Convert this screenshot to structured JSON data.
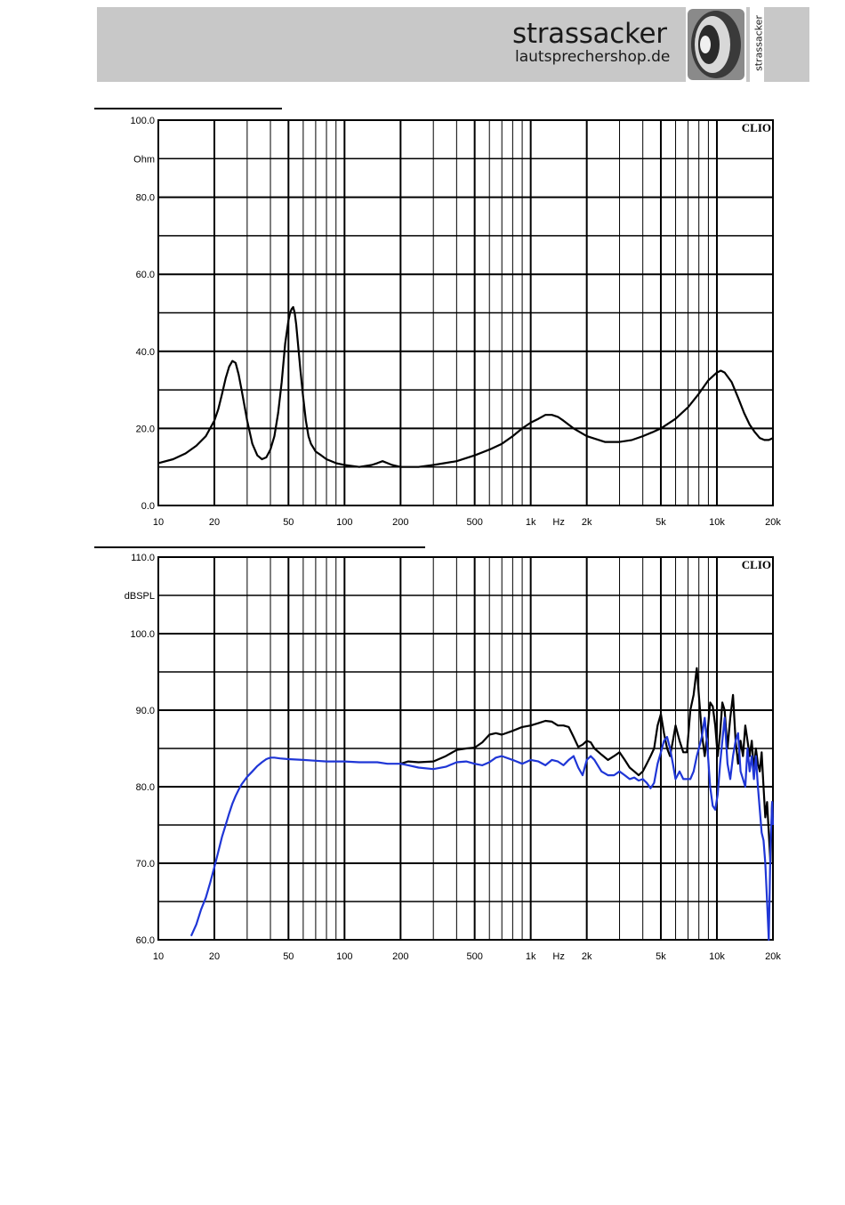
{
  "header": {
    "brand_name": "strassacker",
    "brand_url": "lautsprechershop.de",
    "logo_vertical_text": "strassacker"
  },
  "chart_data": [
    {
      "type": "line",
      "watermark": "CLIO",
      "ylabel": "Ohm",
      "xlabel": "Hz",
      "x_scale": "log",
      "xlim": [
        10,
        20000
      ],
      "ylim": [
        0,
        100
      ],
      "grid": true,
      "x_ticks": [
        10,
        20,
        50,
        100,
        200,
        500,
        1000,
        2000,
        5000,
        10000,
        20000
      ],
      "x_tick_labels": [
        "10",
        "20",
        "50",
        "100",
        "200",
        "500",
        "1k",
        "2k",
        "5k",
        "10k",
        "20k"
      ],
      "y_ticks": [
        0,
        20,
        40,
        60,
        80,
        100
      ],
      "y_tick_labels": [
        "0.0",
        "20.0",
        "40.0",
        "60.0",
        "80.0",
        "100.0"
      ],
      "series": [
        {
          "color": "#000000",
          "x": [
            10,
            12,
            14,
            16,
            18,
            20,
            21,
            22,
            23,
            24,
            25,
            26,
            27,
            28,
            30,
            32,
            34,
            36,
            38,
            40,
            42,
            44,
            46,
            48,
            50,
            51,
            52,
            53,
            54,
            55,
            56,
            57,
            58,
            60,
            62,
            64,
            66,
            68,
            70,
            75,
            80,
            90,
            100,
            120,
            140,
            150,
            160,
            170,
            180,
            200,
            250,
            300,
            400,
            500,
            600,
            700,
            800,
            900,
            1000,
            1100,
            1200,
            1300,
            1400,
            1500,
            1700,
            2000,
            2500,
            3000,
            3500,
            4000,
            4500,
            5000,
            6000,
            7000,
            8000,
            9000,
            10000,
            10500,
            11000,
            12000,
            13000,
            14000,
            15000,
            16000,
            17000,
            18000,
            19000,
            20000
          ],
          "y": [
            11,
            12,
            13.5,
            15.5,
            18,
            22,
            25,
            29,
            33,
            36,
            37.5,
            37,
            34,
            30,
            22,
            16,
            13,
            12,
            12.5,
            14.5,
            18,
            24,
            32,
            42,
            48,
            50,
            51,
            51.5,
            50,
            47,
            43,
            39,
            35,
            28,
            22,
            18,
            16,
            15,
            14,
            13,
            12,
            11,
            10.5,
            10,
            10.5,
            11,
            11.5,
            11,
            10.5,
            10,
            10,
            10.5,
            11.5,
            13,
            14.5,
            16,
            18,
            20,
            21.5,
            22.5,
            23.5,
            23.5,
            23,
            22,
            20,
            18,
            16.5,
            16.5,
            17,
            18,
            19,
            20,
            22.5,
            25.5,
            29,
            32.5,
            34.5,
            35,
            34.5,
            32,
            28,
            24,
            21,
            19,
            17.5,
            17,
            17,
            17.5
          ]
        }
      ]
    },
    {
      "type": "line",
      "watermark": "CLIO",
      "ylabel": "dBSPL",
      "xlabel": "Hz",
      "x_scale": "log",
      "xlim": [
        10,
        20000
      ],
      "ylim": [
        60,
        110
      ],
      "grid": true,
      "x_ticks": [
        10,
        20,
        50,
        100,
        200,
        500,
        1000,
        2000,
        5000,
        10000,
        20000
      ],
      "x_tick_labels": [
        "10",
        "20",
        "50",
        "100",
        "200",
        "500",
        "1k",
        "2k",
        "5k",
        "10k",
        "20k"
      ],
      "y_ticks": [
        60,
        70,
        80,
        90,
        100,
        110
      ],
      "y_tick_labels": [
        "60.0",
        "70.0",
        "80.0",
        "90.0",
        "100.0",
        "110.0"
      ],
      "series": [
        {
          "color": "#000000",
          "x": [
            200,
            220,
            250,
            300,
            350,
            400,
            450,
            500,
            550,
            600,
            650,
            700,
            800,
            900,
            1000,
            1100,
            1200,
            1300,
            1400,
            1500,
            1600,
            1700,
            1800,
            1900,
            2000,
            2100,
            2200,
            2400,
            2600,
            2800,
            3000,
            3200,
            3400,
            3600,
            3800,
            4000,
            4200,
            4400,
            4600,
            4800,
            5000,
            5200,
            5400,
            5600,
            5800,
            6000,
            6300,
            6600,
            6900,
            7200,
            7500,
            7800,
            8000,
            8300,
            8600,
            8900,
            9200,
            9500,
            9800,
            10100,
            10400,
            10700,
            11000,
            11400,
            11800,
            12200,
            12600,
            13000,
            13400,
            13800,
            14200,
            14600,
            15000,
            15400,
            15800,
            16200,
            16600,
            17000,
            17400,
            17800,
            18200,
            18600,
            19000,
            19400,
            19800,
            20000
          ],
          "y": [
            83,
            83.3,
            83.2,
            83.3,
            84,
            84.8,
            85,
            85.1,
            85.8,
            86.8,
            87,
            86.8,
            87.3,
            87.8,
            88,
            88.3,
            88.6,
            88.5,
            88,
            88,
            87.8,
            86.5,
            85.2,
            85.5,
            86,
            85.8,
            85,
            84.2,
            83.5,
            84,
            84.5,
            83.5,
            82.5,
            82,
            81.5,
            82,
            83,
            84,
            85,
            88,
            89.5,
            87,
            85,
            84,
            86,
            88,
            86,
            84.5,
            84.5,
            90,
            92,
            95.5,
            92,
            87,
            84,
            87,
            91,
            90.5,
            88,
            84,
            87,
            91,
            90,
            85,
            89,
            92,
            86,
            83,
            86,
            84,
            88,
            86,
            84,
            86,
            82,
            85,
            83,
            82,
            84.5,
            80,
            76,
            78,
            74,
            70,
            78,
            76
          ]
        },
        {
          "color": "#1f36d6",
          "x": [
            15,
            16,
            17,
            18,
            19,
            20,
            21,
            22,
            23,
            24,
            25,
            26,
            27,
            28,
            30,
            32,
            34,
            36,
            38,
            40,
            42,
            45,
            50,
            60,
            70,
            80,
            100,
            120,
            150,
            170,
            200,
            220,
            250,
            300,
            350,
            400,
            450,
            500,
            550,
            600,
            650,
            700,
            800,
            900,
            1000,
            1100,
            1200,
            1300,
            1400,
            1500,
            1600,
            1700,
            1800,
            1900,
            2000,
            2100,
            2200,
            2400,
            2600,
            2800,
            3000,
            3200,
            3400,
            3600,
            3800,
            4000,
            4200,
            4400,
            4600,
            4800,
            5000,
            5200,
            5400,
            5600,
            5800,
            6000,
            6300,
            6600,
            6900,
            7200,
            7500,
            7800,
            8000,
            8300,
            8600,
            8900,
            9200,
            9500,
            9800,
            10100,
            10400,
            10700,
            11000,
            11400,
            11800,
            12200,
            12600,
            13000,
            13400,
            13800,
            14200,
            14600,
            15000,
            15400,
            15800,
            16200,
            16600,
            17000,
            17400,
            17800,
            18200,
            18600,
            19000,
            19400,
            19800,
            20000
          ],
          "y": [
            60.5,
            62,
            64,
            65.5,
            67.5,
            69.5,
            71.5,
            73.5,
            75,
            76.5,
            77.8,
            78.8,
            79.6,
            80.3,
            81.3,
            82,
            82.7,
            83.2,
            83.6,
            83.8,
            83.8,
            83.7,
            83.6,
            83.5,
            83.4,
            83.3,
            83.3,
            83.2,
            83.2,
            83,
            83,
            82.8,
            82.5,
            82.3,
            82.6,
            83.2,
            83.3,
            83,
            82.8,
            83.2,
            83.8,
            84,
            83.5,
            83,
            83.5,
            83.3,
            82.8,
            83.5,
            83.3,
            82.8,
            83.5,
            84,
            82.5,
            81.5,
            83.5,
            84,
            83.5,
            82,
            81.5,
            81.5,
            82,
            81.5,
            81,
            81.2,
            80.8,
            81,
            80.5,
            79.8,
            80.5,
            83,
            84.5,
            86,
            86.5,
            85,
            83,
            81,
            82,
            81,
            81,
            81,
            82,
            84,
            85,
            86.5,
            89,
            85,
            80,
            77.5,
            77,
            79,
            83,
            86,
            89,
            83,
            81,
            84,
            86,
            87,
            82,
            81,
            80,
            85,
            82,
            84,
            81,
            84,
            80,
            77,
            74,
            73,
            70,
            65,
            60,
            72,
            78,
            75
          ]
        }
      ]
    }
  ]
}
